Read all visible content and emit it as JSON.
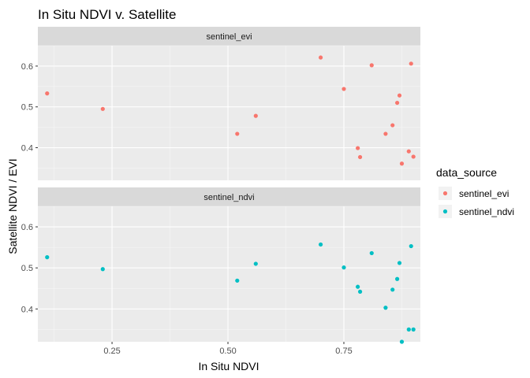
{
  "chart_data": {
    "type": "scatter",
    "title": "In Situ NDVI v. Satellite",
    "xlabel": "In Situ NDVI",
    "ylabel": "Satellite NDVI / EVI",
    "xlim": [
      0.09,
      0.915
    ],
    "x_ticks": [
      0.25,
      0.5,
      0.75
    ],
    "x_tick_labels": [
      "0.25",
      "0.50",
      "0.75"
    ],
    "grid": true,
    "legend": {
      "title": "data_source",
      "placement": "right"
    },
    "facets": [
      {
        "strip_label": "sentinel_evi",
        "series": "sentinel_evi",
        "ylim": [
          0.32,
          0.65
        ],
        "y_ticks": [
          0.4,
          0.5,
          0.6
        ],
        "y_tick_labels": [
          "0.4",
          "0.5",
          "0.6"
        ]
      },
      {
        "strip_label": "sentinel_ndvi",
        "series": "sentinel_ndvi",
        "ylim": [
          0.32,
          0.65
        ],
        "y_ticks": [
          0.4,
          0.5,
          0.6
        ],
        "y_tick_labels": [
          "0.4",
          "0.5",
          "0.6"
        ]
      }
    ],
    "series": [
      {
        "name": "sentinel_evi",
        "color": "#F8766D",
        "points": [
          {
            "x": 0.11,
            "y": 0.533
          },
          {
            "x": 0.23,
            "y": 0.495
          },
          {
            "x": 0.52,
            "y": 0.434
          },
          {
            "x": 0.56,
            "y": 0.478
          },
          {
            "x": 0.7,
            "y": 0.621
          },
          {
            "x": 0.75,
            "y": 0.544
          },
          {
            "x": 0.78,
            "y": 0.399
          },
          {
            "x": 0.785,
            "y": 0.377
          },
          {
            "x": 0.81,
            "y": 0.602
          },
          {
            "x": 0.84,
            "y": 0.434
          },
          {
            "x": 0.855,
            "y": 0.455
          },
          {
            "x": 0.865,
            "y": 0.51
          },
          {
            "x": 0.87,
            "y": 0.528
          },
          {
            "x": 0.875,
            "y": 0.361
          },
          {
            "x": 0.89,
            "y": 0.391
          },
          {
            "x": 0.895,
            "y": 0.606
          },
          {
            "x": 0.9,
            "y": 0.378
          }
        ]
      },
      {
        "name": "sentinel_ndvi",
        "color": "#00BFC4",
        "points": [
          {
            "x": 0.11,
            "y": 0.526
          },
          {
            "x": 0.23,
            "y": 0.497
          },
          {
            "x": 0.52,
            "y": 0.469
          },
          {
            "x": 0.56,
            "y": 0.51
          },
          {
            "x": 0.7,
            "y": 0.557
          },
          {
            "x": 0.75,
            "y": 0.501
          },
          {
            "x": 0.78,
            "y": 0.454
          },
          {
            "x": 0.785,
            "y": 0.442
          },
          {
            "x": 0.81,
            "y": 0.536
          },
          {
            "x": 0.84,
            "y": 0.403
          },
          {
            "x": 0.855,
            "y": 0.447
          },
          {
            "x": 0.865,
            "y": 0.473
          },
          {
            "x": 0.87,
            "y": 0.512
          },
          {
            "x": 0.875,
            "y": 0.32
          },
          {
            "x": 0.89,
            "y": 0.35
          },
          {
            "x": 0.895,
            "y": 0.553
          },
          {
            "x": 0.9,
            "y": 0.35
          }
        ]
      }
    ]
  }
}
